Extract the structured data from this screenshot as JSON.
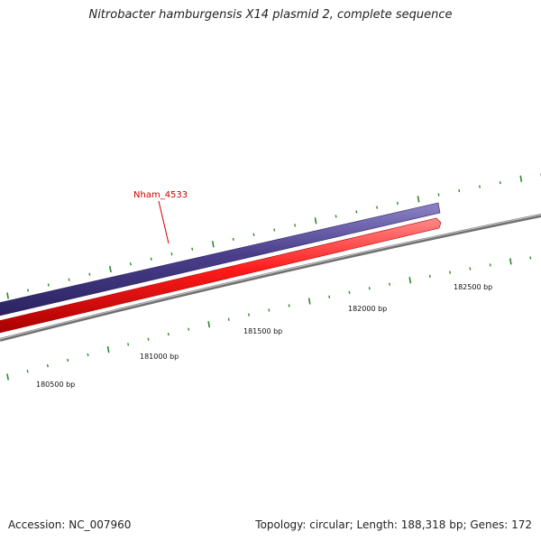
{
  "title": "Nitrobacter hamburgensis X14 plasmid 2, complete sequence",
  "gene_label": "Nham_4533",
  "ruler_labels": [
    "180500 bp",
    "181000 bp",
    "181500 bp",
    "182000 bp",
    "182500 bp"
  ],
  "footer": {
    "accession": "Accession: NC_007960",
    "summary": "Topology: circular; Length: 188,318 bp; Genes: 172"
  },
  "colors": {
    "backbone": "#808080",
    "forward_feature": "#4b3f8c",
    "reverse_feature": "#ee1111",
    "ticks": "#2a8a2a",
    "label_line": "#cc0000"
  }
}
